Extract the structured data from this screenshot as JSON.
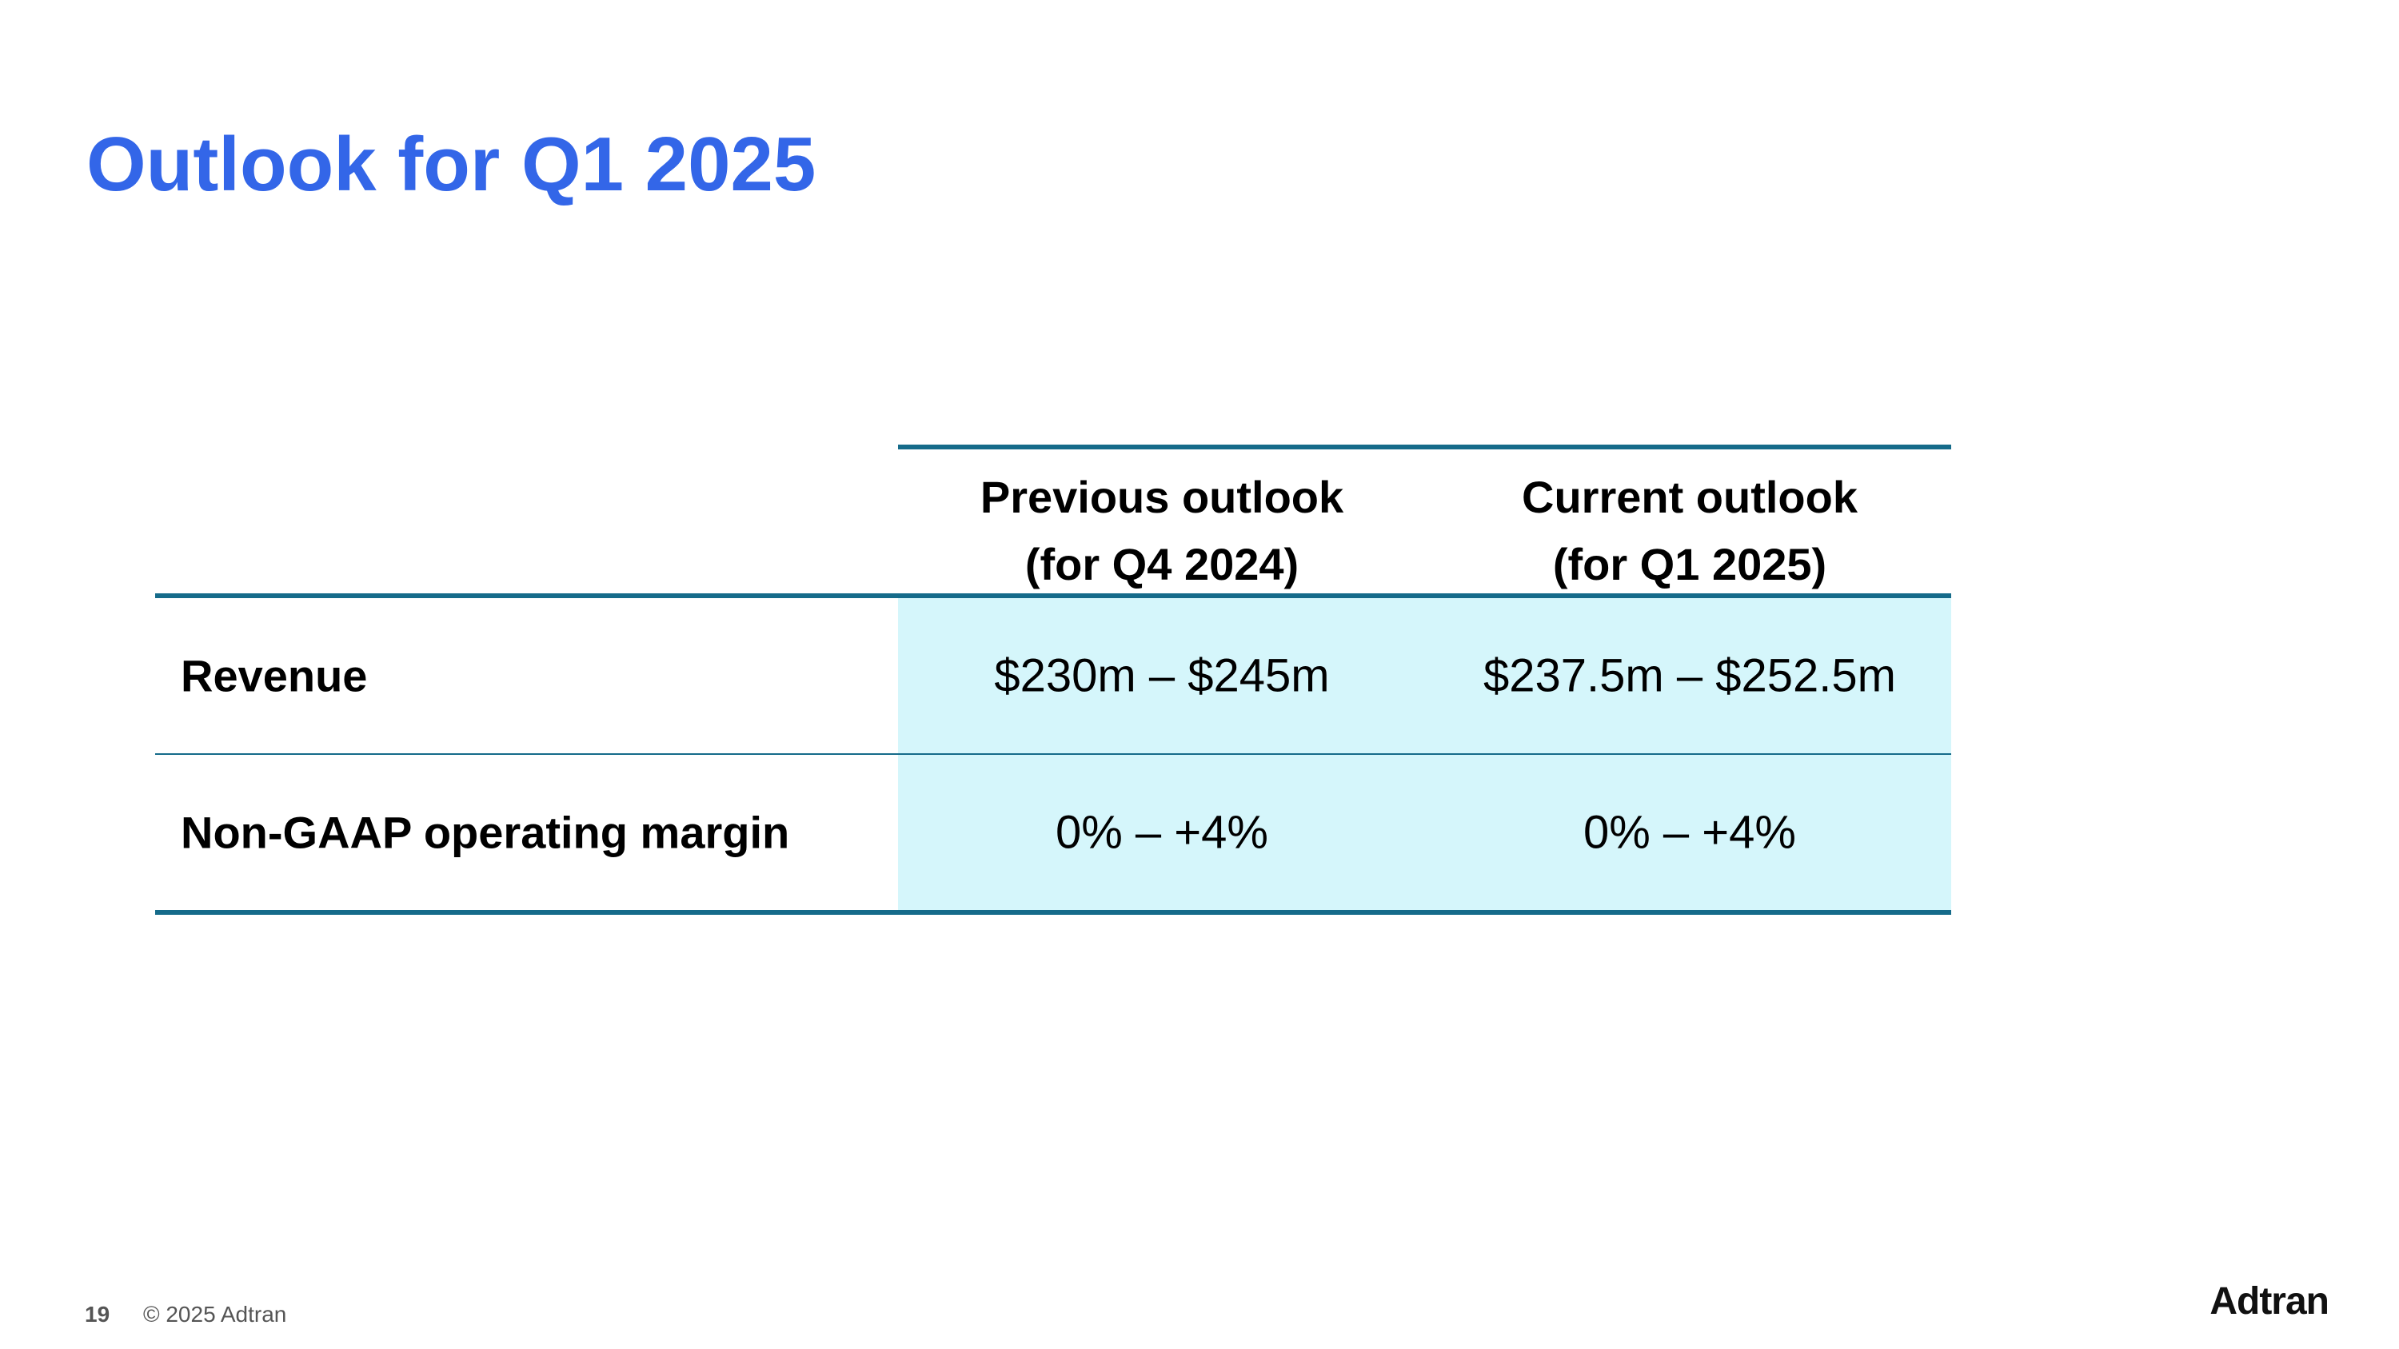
{
  "slide": {
    "title": "Outlook for Q1 2025"
  },
  "table": {
    "headers": [
      {
        "line1": "Previous outlook",
        "line2": "(for Q4 2024)"
      },
      {
        "line1": "Current outlook",
        "line2": "(for Q1 2025)"
      }
    ],
    "rows": [
      {
        "label": "Revenue",
        "previous": "$230m – $245m",
        "current": "$237.5m – $252.5m"
      },
      {
        "label": "Non-GAAP operating margin",
        "previous": "0% – +4%",
        "current": "0% – +4%"
      }
    ]
  },
  "footer": {
    "page_number": "19",
    "copyright": "© 2025 Adtran"
  },
  "logo": {
    "text": "Adtran"
  },
  "colors": {
    "title": "#3366e8",
    "rule": "#156b8a",
    "shade": "#d5f6fb"
  }
}
